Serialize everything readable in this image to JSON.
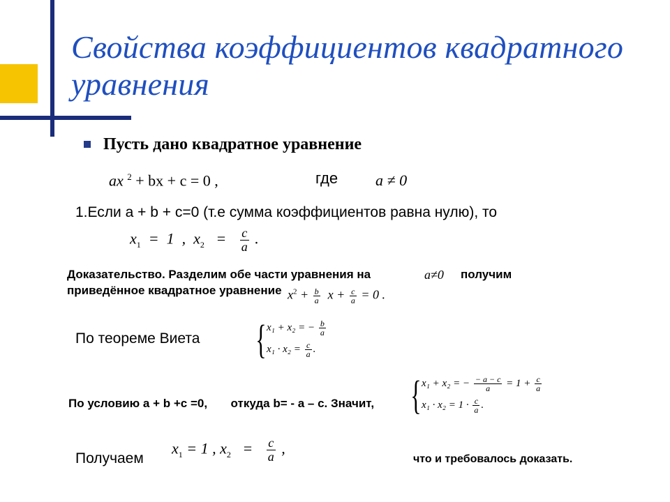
{
  "title": "Свойства коэффициентов квадратного уравнения",
  "title_color": "#1f4fbf",
  "title_fontsize": 46,
  "decor": {
    "yellow": "#f6c400",
    "line": "#1a2c7a"
  },
  "lead": "Пусть дано квадратное уравнение",
  "eq_main": "ax",
  "eq_main_sup": "2",
  "eq_main_rest": "  +   bx   +   c   =   0  ,",
  "gde": "где",
  "ane0": "a ≠ 0",
  "cond1": "1.Если a + b + c=0 (т.е сумма коэффициентов равна нулю), то",
  "roots": {
    "x1_label": "x",
    "x1_sub": "1",
    "x1_val": "1",
    "x2_label": "x",
    "x2_sub": "2",
    "frac_num": "c",
    "frac_den": "a",
    "tail": "."
  },
  "proof_pt1": "Доказательство. Разделим обе части уравнения на",
  "proof_ane0": "a≠0",
  "proof_pt1b": "получим",
  "proof_pt2": "приведённое квадратное уравнение",
  "reduced": {
    "x": "x",
    "sup": "2",
    "plus": " + ",
    "b": "b",
    "a": "a",
    "c": "c",
    "eq0": " = 0 ."
  },
  "vieta_label": "По теореме Виета",
  "vieta": {
    "row1_pre": "x₁ + x₂ = − ",
    "row1_num": "b",
    "row1_den": "a",
    "row2_pre": "x₁ · x₂ = ",
    "row2_num": "c",
    "row2_den": "a",
    "dot": "."
  },
  "cond_line_a": "По условию a + b +c =0,",
  "cond_line_b": "откуда  b= - a – c.  Значит,",
  "sys2": {
    "r1_pre": "x₁ + x₂ = − ",
    "r1_num": "− a − c",
    "r1_den": "a",
    "r1_mid": " = 1 + ",
    "r1_num2": "c",
    "r1_den2": "a",
    "r2_pre": "x₁ · x₂ = 1 · ",
    "r2_num": "c",
    "r2_den": "a",
    "dot": "."
  },
  "final_label": "Получаем",
  "final": {
    "x1": "x",
    "s1": "1",
    "eq": " = ",
    "v1": "1",
    "sep": " ,  ",
    "x2": "x",
    "s2": "2",
    "num": "c",
    "den": "a",
    "comma": " ,"
  },
  "qed": "что и требовалось доказать."
}
